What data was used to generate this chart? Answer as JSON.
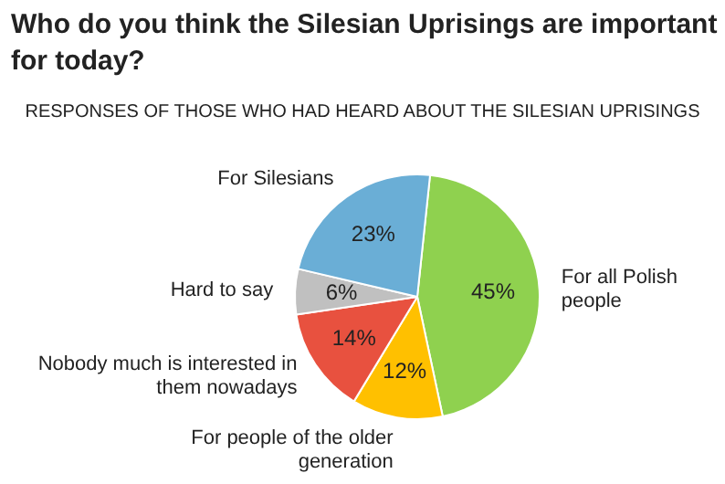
{
  "chart_data": {
    "type": "pie",
    "title": "Who do you think the Silesian Uprisings are important for today?",
    "subtitle": "RESPONSES OF THOSE WHO HAD HEARD ABOUT THE SILESIAN UPRISINGS",
    "categories": [
      "For all Polish people",
      "For people of the older generation",
      "Nobody much is interested in them nowadays",
      "Hard to say",
      "For Silesians"
    ],
    "values": [
      45,
      12,
      14,
      6,
      23
    ],
    "value_labels": [
      "45%",
      "12%",
      "14%",
      "6%",
      "23%"
    ],
    "colors": [
      "#8fd14f",
      "#ffc000",
      "#e8513f",
      "#c0c0c0",
      "#6aaed6"
    ]
  }
}
